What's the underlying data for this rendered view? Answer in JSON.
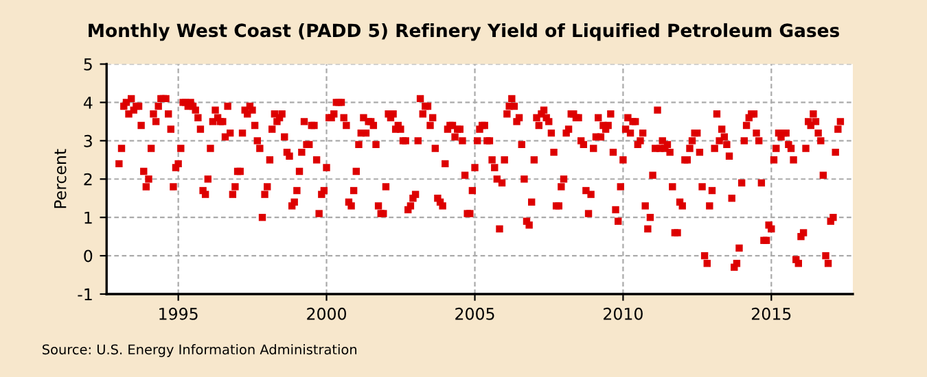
{
  "chart_data": {
    "type": "scatter",
    "title": "Monthly West Coast (PADD 5) Refinery Yield of Liquified Petroleum Gases",
    "ylabel": "Percent",
    "annotations": [
      "Source: U.S. Energy Information Administration"
    ],
    "x": [
      "1993-01",
      "1993-02",
      "1993-03",
      "1993-04",
      "1993-05",
      "1993-06",
      "1993-07",
      "1993-08",
      "1993-09",
      "1993-10",
      "1993-11",
      "1993-12",
      "1994-01",
      "1994-02",
      "1994-03",
      "1994-04",
      "1994-05",
      "1994-06",
      "1994-07",
      "1994-08",
      "1994-09",
      "1994-10",
      "1994-11",
      "1994-12",
      "1995-01",
      "1995-02",
      "1995-03",
      "1995-04",
      "1995-05",
      "1995-06",
      "1995-07",
      "1995-08",
      "1995-09",
      "1995-10",
      "1995-11",
      "1995-12",
      "1996-01",
      "1996-02",
      "1996-03",
      "1996-04",
      "1996-05",
      "1996-06",
      "1996-07",
      "1996-08",
      "1996-09",
      "1996-10",
      "1996-11",
      "1996-12",
      "1997-01",
      "1997-02",
      "1997-03",
      "1997-04",
      "1997-05",
      "1997-06",
      "1997-07",
      "1997-08",
      "1997-09",
      "1997-10",
      "1997-11",
      "1997-12",
      "1998-01",
      "1998-02",
      "1998-03",
      "1998-04",
      "1998-05",
      "1998-06",
      "1998-07",
      "1998-08",
      "1998-09",
      "1998-10",
      "1998-11",
      "1998-12",
      "1999-01",
      "1999-02",
      "1999-03",
      "1999-04",
      "1999-05",
      "1999-06",
      "1999-07",
      "1999-08",
      "1999-09",
      "1999-10",
      "1999-11",
      "1999-12",
      "2000-01",
      "2000-02",
      "2000-03",
      "2000-04",
      "2000-05",
      "2000-06",
      "2000-07",
      "2000-08",
      "2000-09",
      "2000-10",
      "2000-11",
      "2000-12",
      "2001-01",
      "2001-02",
      "2001-03",
      "2001-04",
      "2001-05",
      "2001-06",
      "2001-07",
      "2001-08",
      "2001-09",
      "2001-10",
      "2001-11",
      "2001-12",
      "2002-01",
      "2002-02",
      "2002-03",
      "2002-04",
      "2002-05",
      "2002-06",
      "2002-07",
      "2002-08",
      "2002-09",
      "2002-10",
      "2002-11",
      "2002-12",
      "2003-01",
      "2003-02",
      "2003-03",
      "2003-04",
      "2003-05",
      "2003-06",
      "2003-07",
      "2003-08",
      "2003-09",
      "2003-10",
      "2003-11",
      "2003-12",
      "2004-01",
      "2004-02",
      "2004-03",
      "2004-04",
      "2004-05",
      "2004-06",
      "2004-07",
      "2004-08",
      "2004-09",
      "2004-10",
      "2004-11",
      "2004-12",
      "2005-01",
      "2005-02",
      "2005-03",
      "2005-04",
      "2005-05",
      "2005-06",
      "2005-07",
      "2005-08",
      "2005-09",
      "2005-10",
      "2005-11",
      "2005-12",
      "2006-01",
      "2006-02",
      "2006-03",
      "2006-04",
      "2006-05",
      "2006-06",
      "2006-07",
      "2006-08",
      "2006-09",
      "2006-10",
      "2006-11",
      "2006-12",
      "2007-01",
      "2007-02",
      "2007-03",
      "2007-04",
      "2007-05",
      "2007-06",
      "2007-07",
      "2007-08",
      "2007-09",
      "2007-10",
      "2007-11",
      "2007-12",
      "2008-01",
      "2008-02",
      "2008-03",
      "2008-04",
      "2008-05",
      "2008-06",
      "2008-07",
      "2008-08",
      "2008-09",
      "2008-10",
      "2008-11",
      "2008-12",
      "2009-01",
      "2009-02",
      "2009-03",
      "2009-04",
      "2009-05",
      "2009-06",
      "2009-07",
      "2009-08",
      "2009-09",
      "2009-10",
      "2009-11",
      "2009-12",
      "2010-01",
      "2010-02",
      "2010-03",
      "2010-04",
      "2010-05",
      "2010-06",
      "2010-07",
      "2010-08",
      "2010-09",
      "2010-10",
      "2010-11",
      "2010-12",
      "2011-01",
      "2011-02",
      "2011-03",
      "2011-04",
      "2011-05",
      "2011-06",
      "2011-07",
      "2011-08",
      "2011-09",
      "2011-10",
      "2011-11",
      "2011-12",
      "2012-01",
      "2012-02",
      "2012-03",
      "2012-04",
      "2012-05",
      "2012-06",
      "2012-07",
      "2012-08",
      "2012-09",
      "2012-10",
      "2012-11",
      "2012-12",
      "2013-01",
      "2013-02",
      "2013-03",
      "2013-04",
      "2013-05",
      "2013-06",
      "2013-07",
      "2013-08",
      "2013-09",
      "2013-10",
      "2013-11",
      "2013-12",
      "2014-01",
      "2014-02",
      "2014-03",
      "2014-04",
      "2014-05",
      "2014-06",
      "2014-07",
      "2014-08",
      "2014-09",
      "2014-10",
      "2014-11",
      "2014-12",
      "2015-01",
      "2015-02",
      "2015-03",
      "2015-04",
      "2015-05",
      "2015-06",
      "2015-07",
      "2015-08",
      "2015-09",
      "2015-10",
      "2015-11",
      "2015-12",
      "2016-01",
      "2016-02",
      "2016-03",
      "2016-04",
      "2016-05",
      "2016-06",
      "2016-07",
      "2016-08",
      "2016-09",
      "2016-10",
      "2016-11",
      "2016-12",
      "2017-01",
      "2017-02",
      "2017-03",
      "2017-04",
      "2017-05"
    ],
    "series": [
      {
        "color": "#dd0000",
        "values": [
          2.4,
          2.8,
          3.9,
          4.0,
          3.7,
          4.1,
          3.8,
          3.9,
          3.9,
          3.4,
          2.2,
          1.8,
          2.0,
          2.8,
          3.7,
          3.5,
          3.9,
          4.1,
          4.1,
          4.1,
          3.7,
          3.3,
          1.8,
          2.3,
          2.4,
          2.8,
          4.0,
          4.0,
          3.9,
          4.0,
          3.9,
          3.8,
          3.6,
          3.3,
          1.7,
          1.6,
          2.0,
          2.8,
          3.5,
          3.8,
          3.6,
          3.5,
          3.5,
          3.1,
          3.9,
          3.2,
          1.6,
          1.8,
          2.2,
          2.2,
          3.2,
          3.8,
          3.7,
          3.9,
          3.8,
          3.4,
          3.0,
          2.8,
          1.0,
          1.6,
          1.8,
          2.5,
          3.3,
          3.7,
          3.5,
          3.6,
          3.7,
          3.1,
          2.7,
          2.6,
          1.3,
          1.4,
          1.7,
          2.2,
          2.7,
          3.5,
          2.9,
          2.9,
          3.4,
          3.4,
          2.5,
          1.1,
          1.6,
          1.7,
          2.3,
          3.6,
          3.6,
          3.7,
          4.0,
          4.0,
          4.0,
          3.6,
          3.4,
          1.4,
          1.3,
          1.7,
          2.2,
          2.9,
          3.2,
          3.6,
          3.2,
          3.5,
          3.5,
          3.4,
          2.9,
          1.3,
          1.1,
          1.1,
          1.8,
          3.7,
          3.6,
          3.7,
          3.3,
          3.4,
          3.3,
          3.0,
          3.0,
          1.2,
          1.3,
          1.5,
          1.6,
          3.0,
          4.1,
          3.7,
          3.9,
          3.9,
          3.4,
          3.6,
          2.8,
          1.5,
          1.4,
          1.3,
          2.4,
          3.3,
          3.4,
          3.4,
          3.1,
          3.3,
          3.3,
          3.0,
          2.1,
          1.1,
          1.1,
          1.7,
          2.3,
          3.0,
          3.3,
          3.4,
          3.4,
          3.0,
          3.0,
          2.5,
          2.3,
          2.0,
          0.7,
          1.9,
          2.5,
          3.7,
          3.9,
          4.1,
          3.9,
          3.5,
          3.6,
          2.9,
          2.0,
          0.9,
          0.8,
          1.4,
          2.5,
          3.6,
          3.4,
          3.7,
          3.8,
          3.6,
          3.5,
          3.2,
          2.7,
          1.3,
          1.3,
          1.8,
          2.0,
          3.2,
          3.3,
          3.7,
          3.7,
          3.6,
          3.6,
          3.0,
          2.9,
          1.7,
          1.1,
          1.6,
          2.8,
          3.1,
          3.6,
          3.1,
          3.4,
          3.3,
          3.4,
          3.7,
          2.7,
          1.2,
          0.9,
          1.8,
          2.5,
          3.3,
          3.6,
          3.2,
          3.5,
          3.5,
          2.9,
          3.0,
          3.2,
          1.3,
          0.7,
          1.0,
          2.1,
          2.8,
          3.8,
          2.8,
          3.0,
          2.8,
          2.9,
          2.7,
          1.8,
          0.6,
          0.6,
          1.4,
          1.3,
          2.5,
          2.5,
          2.8,
          3.0,
          3.2,
          3.2,
          2.7,
          1.8,
          0.0,
          -0.2,
          1.3,
          1.7,
          2.8,
          3.7,
          3.0,
          3.3,
          3.1,
          2.9,
          2.6,
          1.5,
          -0.3,
          -0.2,
          0.2,
          1.9,
          3.0,
          3.4,
          3.6,
          3.7,
          3.7,
          3.2,
          3.0,
          1.9,
          0.4,
          0.4,
          0.8,
          0.7,
          2.5,
          2.8,
          3.2,
          3.1,
          3.2,
          3.2,
          2.9,
          2.8,
          2.5,
          -0.1,
          -0.2,
          0.5,
          0.6,
          2.8,
          3.5,
          3.4,
          3.7,
          3.5,
          3.2,
          3.0,
          2.1,
          0.0,
          -0.2,
          0.9,
          1.0,
          2.7,
          3.3,
          3.5
        ]
      }
    ],
    "xlim": [
      "1992-08",
      "2017-10"
    ],
    "xticks": [
      "1995",
      "2000",
      "2005",
      "2010",
      "2015"
    ],
    "ylim": [
      -1,
      5
    ],
    "yticks": [
      -1,
      0,
      1,
      2,
      3,
      4,
      5
    ],
    "grid": true,
    "marker": "square"
  }
}
